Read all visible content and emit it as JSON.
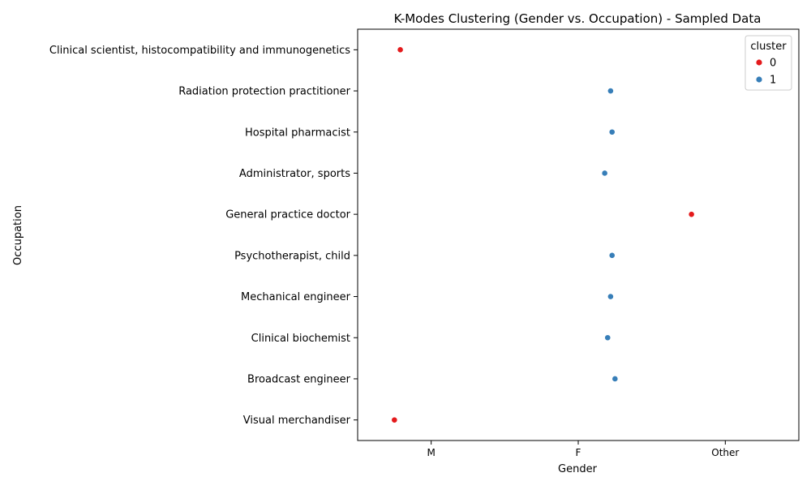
{
  "chart_data": {
    "type": "scatter",
    "title": "K-Modes Clustering (Gender vs. Occupation) - Sampled Data",
    "xlabel": "Gender",
    "ylabel": "Occupation",
    "x_categories": [
      "M",
      "F",
      "Other"
    ],
    "y_categories": [
      "Clinical scientist, histocompatibility and immunogenetics",
      "Radiation protection practitioner",
      "Hospital pharmacist",
      "Administrator, sports",
      "General practice doctor",
      "Psychotherapist, child",
      "Mechanical engineer",
      "Clinical biochemist",
      "Broadcast engineer",
      "Visual merchandiser"
    ],
    "legend": {
      "title": "cluster",
      "position": "top-right"
    },
    "series": [
      {
        "name": "0",
        "color": "#e41a1c",
        "points": [
          {
            "gender": "M",
            "occupation": "Clinical scientist, histocompatibility and immunogenetics",
            "jitter": -0.21
          },
          {
            "gender": "Other",
            "occupation": "General practice doctor",
            "jitter": -0.23
          },
          {
            "gender": "M",
            "occupation": "Visual merchandiser",
            "jitter": -0.25
          }
        ]
      },
      {
        "name": "1",
        "color": "#377eb8",
        "points": [
          {
            "gender": "F",
            "occupation": "Radiation protection practitioner",
            "jitter": 0.22
          },
          {
            "gender": "F",
            "occupation": "Hospital pharmacist",
            "jitter": 0.23
          },
          {
            "gender": "F",
            "occupation": "Administrator, sports",
            "jitter": 0.18
          },
          {
            "gender": "F",
            "occupation": "Psychotherapist, child",
            "jitter": 0.23
          },
          {
            "gender": "F",
            "occupation": "Mechanical engineer",
            "jitter": 0.22
          },
          {
            "gender": "F",
            "occupation": "Clinical biochemist",
            "jitter": 0.2
          },
          {
            "gender": "F",
            "occupation": "Broadcast engineer",
            "jitter": 0.25
          }
        ]
      }
    ]
  }
}
